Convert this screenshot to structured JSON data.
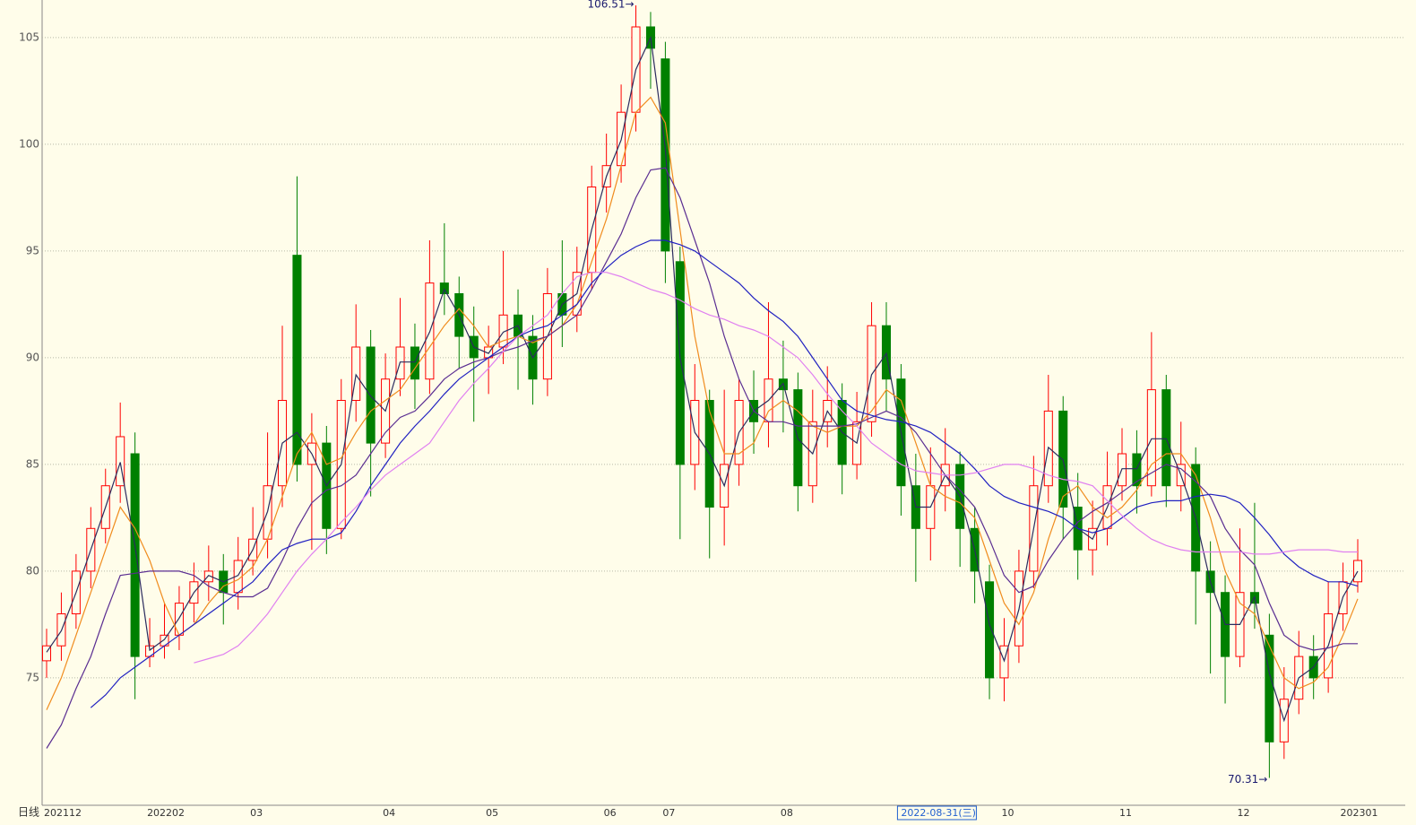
{
  "chart_data": {
    "type": "candlestick",
    "period_label": "日线",
    "max_label": "106.51→",
    "min_label": "70.31→",
    "cursor_label": "2022-08-31(三)",
    "cursor_index": 58,
    "up_color": "#ff0000",
    "down_color": "#008000",
    "grid": true,
    "ylim": [
      69.03,
      106.76
    ],
    "yticks": [
      75,
      80,
      85,
      90,
      95,
      100,
      105
    ],
    "categories": [
      "202112",
      null,
      null,
      null,
      null,
      null,
      null,
      "202202",
      null,
      null,
      null,
      null,
      null,
      null,
      "03",
      null,
      null,
      null,
      null,
      null,
      null,
      null,
      null,
      "04",
      null,
      null,
      null,
      null,
      null,
      null,
      "05",
      null,
      null,
      null,
      null,
      null,
      null,
      null,
      "06",
      null,
      null,
      null,
      "07",
      null,
      null,
      null,
      null,
      null,
      null,
      null,
      "08",
      null,
      null,
      null,
      null,
      null,
      null,
      null,
      null,
      null,
      null,
      null,
      null,
      null,
      null,
      "10",
      null,
      null,
      null,
      null,
      null,
      null,
      null,
      "11",
      null,
      null,
      null,
      null,
      null,
      null,
      null,
      "12",
      null,
      null,
      null,
      null,
      null,
      null,
      "202301",
      null
    ],
    "open": [
      75.8,
      76.5,
      78,
      80,
      82,
      84,
      85.5,
      76,
      76.5,
      77,
      78.5,
      79.5,
      80,
      79,
      80.5,
      81.5,
      84,
      94.8,
      85,
      86,
      82,
      88,
      90.5,
      86,
      89,
      90.5,
      89,
      93.5,
      93,
      91,
      90,
      90.5,
      92,
      91,
      89,
      93,
      92,
      94,
      98,
      99,
      101.5,
      105.5,
      104,
      94.5,
      85,
      88,
      83,
      85,
      88,
      87,
      89,
      88.5,
      84,
      87,
      88,
      85,
      87,
      91.5,
      89,
      84,
      82,
      84,
      85,
      82,
      79.5,
      75,
      76.5,
      80,
      84,
      87.5,
      83,
      81,
      82,
      84,
      85.5,
      84,
      88.5,
      84,
      85,
      80,
      79,
      76,
      79,
      77,
      72,
      74,
      76,
      75,
      78,
      79.5
    ],
    "high": [
      77.3,
      79,
      80.8,
      83,
      84.8,
      87.9,
      86.5,
      77.8,
      78.5,
      79.3,
      80.4,
      81.2,
      80.8,
      81.6,
      83,
      86.5,
      91.5,
      98.5,
      87.4,
      86.8,
      89,
      92.5,
      91.3,
      90.2,
      92.8,
      91.6,
      95.5,
      96.3,
      93.8,
      92.4,
      91.5,
      95,
      93.2,
      92,
      94.2,
      95.5,
      95.2,
      99,
      100.5,
      102.8,
      106.51,
      106.2,
      104.8,
      95.2,
      89.7,
      88.5,
      88.5,
      89,
      89.4,
      92.6,
      90.8,
      89.3,
      88.5,
      89.6,
      88.8,
      88.4,
      92.6,
      92.6,
      89.7,
      85.5,
      85.8,
      86.7,
      85.6,
      83,
      80.3,
      77.8,
      81,
      85.4,
      89.2,
      88.2,
      84.6,
      83.3,
      85.6,
      86.7,
      86.6,
      91.2,
      89.2,
      87,
      85.8,
      81.4,
      79.8,
      82,
      83.2,
      78,
      75.5,
      77.2,
      77,
      79.5,
      80.4,
      81.5
    ],
    "low": [
      75,
      75.8,
      77.3,
      79.2,
      81.3,
      83.2,
      74,
      75.5,
      75.9,
      76.3,
      77.6,
      78.6,
      77.5,
      78.2,
      79.8,
      80.6,
      83,
      84.2,
      81,
      80.8,
      81.5,
      87,
      83.5,
      85.3,
      88.2,
      87.6,
      88.3,
      92,
      89.5,
      87,
      88.3,
      89.7,
      88.5,
      87.8,
      88.2,
      90.5,
      91.2,
      93.2,
      96.8,
      98.2,
      100.6,
      102.6,
      93.5,
      81.5,
      83.8,
      80.6,
      81.2,
      84,
      85.5,
      85.8,
      86.5,
      82.8,
      83.2,
      85.8,
      83.6,
      84.3,
      86.3,
      87.5,
      82.6,
      79.5,
      80.5,
      82.8,
      80.2,
      78.5,
      74,
      73.9,
      75.7,
      79.2,
      83.2,
      81.5,
      79.6,
      79.8,
      81.2,
      83.3,
      82.7,
      83.5,
      83,
      82.8,
      77.5,
      75.2,
      73.8,
      75.5,
      77.3,
      70.31,
      71.2,
      73.3,
      74,
      74.3,
      77.2,
      79
    ],
    "close": [
      76.5,
      78,
      80,
      82,
      84,
      86.3,
      76,
      76.5,
      77,
      78.5,
      79.5,
      80,
      79,
      80.5,
      81.5,
      84,
      88,
      85,
      86,
      82,
      88,
      90.5,
      86,
      89,
      90.5,
      89,
      93.5,
      93,
      91,
      90,
      90.5,
      92,
      91,
      89,
      93,
      92,
      94,
      98,
      99,
      101.5,
      105.5,
      104.5,
      95,
      85,
      88,
      83,
      85,
      88,
      87,
      89,
      88.5,
      84,
      87,
      88,
      85,
      87,
      91.5,
      89,
      84,
      82,
      84,
      85,
      82,
      80,
      75,
      76.5,
      80,
      84,
      87.5,
      83,
      81,
      82,
      84,
      85.5,
      84,
      88.5,
      84,
      85,
      80,
      79,
      76,
      79,
      78.5,
      72,
      74,
      76,
      75,
      78,
      79.5,
      80.5
    ],
    "series": [
      {
        "color": "#2b2b5e",
        "values": [
          76.2,
          77.2,
          79,
          81,
          83,
          85.1,
          81.2,
          76.3,
          76.8,
          77.8,
          79,
          79.8,
          79.5,
          79.8,
          81,
          82.8,
          86,
          86.5,
          85.5,
          84,
          85,
          89.2,
          88.2,
          87.5,
          89.8,
          89.8,
          91.2,
          93.2,
          92,
          90.5,
          90.2,
          91.2,
          91.5,
          90,
          91,
          92.5,
          93,
          96,
          98.5,
          100.2,
          103.5,
          105,
          99.8,
          90,
          86.5,
          85.5,
          84,
          86.5,
          87.5,
          88,
          88.8,
          86.2,
          85.5,
          87.5,
          86.5,
          86,
          89.2,
          90.2,
          86.5,
          83,
          83,
          84.5,
          83.5,
          81,
          77.5,
          75.8,
          78.2,
          82,
          85.8,
          85.2,
          82,
          81.5,
          83,
          84.8,
          84.8,
          86.2,
          86.2,
          84.5,
          82.5,
          79.5,
          77.5,
          77.5,
          78.8,
          75.2,
          73,
          75,
          75.5,
          76.5,
          78.8,
          80
        ]
      },
      {
        "color": "#f08c1e",
        "values": [
          73.5,
          75,
          77,
          79,
          81,
          83,
          82,
          80.5,
          78.5,
          77,
          77.5,
          78.5,
          79.3,
          79.6,
          80.2,
          81.5,
          83.5,
          85.5,
          86.5,
          85,
          85.3,
          86.5,
          87.5,
          88,
          88.5,
          89.5,
          90.5,
          91.5,
          92.3,
          91.5,
          90.5,
          90.8,
          91,
          90.7,
          91,
          91.5,
          92.5,
          94.5,
          96.5,
          99,
          101.5,
          102.2,
          101,
          96,
          91,
          87.5,
          85.5,
          85.5,
          86,
          87.5,
          88,
          87.5,
          86.8,
          86.5,
          86.8,
          86.8,
          87.5,
          88.5,
          88,
          86,
          84,
          83.5,
          83.2,
          82.5,
          80.5,
          78.5,
          77.5,
          79,
          81.5,
          83.5,
          84,
          83,
          82.5,
          83,
          83.8,
          85,
          85.5,
          85.5,
          84.5,
          82.5,
          80,
          78.5,
          78,
          76.5,
          75,
          74.5,
          74.8,
          75.5,
          77,
          78.7
        ]
      },
      {
        "color": "#5a2d91",
        "values": [
          71.7,
          72.8,
          74.5,
          76,
          78,
          79.8,
          79.9,
          80,
          80,
          80,
          79.8,
          79.3,
          79,
          78.8,
          78.8,
          79.2,
          80.5,
          82,
          83.2,
          83.8,
          84,
          84.5,
          85.5,
          86.5,
          87.2,
          87.5,
          88.2,
          89,
          89.5,
          89.8,
          90,
          90.3,
          90.5,
          90.8,
          91,
          91.5,
          92,
          93.2,
          94.5,
          95.8,
          97.5,
          98.8,
          98.9,
          97.5,
          95.5,
          93.5,
          91,
          89,
          87.5,
          87,
          87,
          86.8,
          86.8,
          86.8,
          86.8,
          86.9,
          87.2,
          87.5,
          87.2,
          86.5,
          85.5,
          84.5,
          83.8,
          83,
          81.5,
          79.8,
          79,
          79.3,
          80.5,
          81.5,
          82.3,
          82.8,
          83.2,
          83.7,
          84.2,
          84.6,
          85,
          84.8,
          84.2,
          83.5,
          82,
          81,
          80.3,
          78.5,
          77,
          76.5,
          76.3,
          76.4,
          76.6,
          76.6
        ]
      },
      {
        "color": "#2020c0",
        "values": [
          null,
          null,
          null,
          73.6,
          74.2,
          75,
          75.5,
          76,
          76.5,
          77,
          77.5,
          78,
          78.5,
          79,
          79.5,
          80.3,
          81,
          81.3,
          81.5,
          81.5,
          81.8,
          82.8,
          84,
          85,
          86,
          86.8,
          87.5,
          88.3,
          89,
          89.5,
          90,
          90.5,
          91,
          91.3,
          91.5,
          92,
          92.5,
          93.5,
          94.2,
          94.8,
          95.2,
          95.5,
          95.5,
          95.3,
          95,
          94.5,
          94,
          93.5,
          92.8,
          92.2,
          91.7,
          91,
          90,
          89,
          88,
          87.5,
          87.3,
          87.1,
          87,
          86.8,
          86.5,
          86,
          85.5,
          84.8,
          84,
          83.5,
          83.2,
          83,
          82.8,
          82.5,
          82,
          81.8,
          82,
          82.5,
          83,
          83.2,
          83.3,
          83.3,
          83.5,
          83.6,
          83.5,
          83.2,
          82.5,
          81.7,
          80.8,
          80.2,
          79.8,
          79.5,
          79.5,
          79.3
        ]
      },
      {
        "color": "#e080f0",
        "values": [
          null,
          null,
          null,
          null,
          null,
          null,
          null,
          null,
          null,
          null,
          75.7,
          75.9,
          76.1,
          76.5,
          77.2,
          78,
          79,
          80,
          80.8,
          81.5,
          82.3,
          83,
          83.8,
          84.5,
          85,
          85.5,
          86,
          87,
          88,
          88.8,
          89.5,
          90.3,
          91,
          91.5,
          92,
          93,
          93.8,
          94,
          94,
          93.8,
          93.5,
          93.2,
          93,
          92.7,
          92.3,
          92,
          91.8,
          91.5,
          91.3,
          91,
          90.5,
          90,
          89.2,
          88.3,
          87.5,
          86.8,
          86,
          85.5,
          85,
          84.7,
          84.6,
          84.5,
          84.5,
          84.6,
          84.8,
          85,
          85,
          84.8,
          84.5,
          84.3,
          84.2,
          84,
          83.3,
          82.6,
          82,
          81.5,
          81.2,
          81,
          80.9,
          80.9,
          80.9,
          80.9,
          80.8,
          80.8,
          80.9,
          81,
          81,
          81,
          80.9,
          80.9
        ]
      }
    ]
  }
}
